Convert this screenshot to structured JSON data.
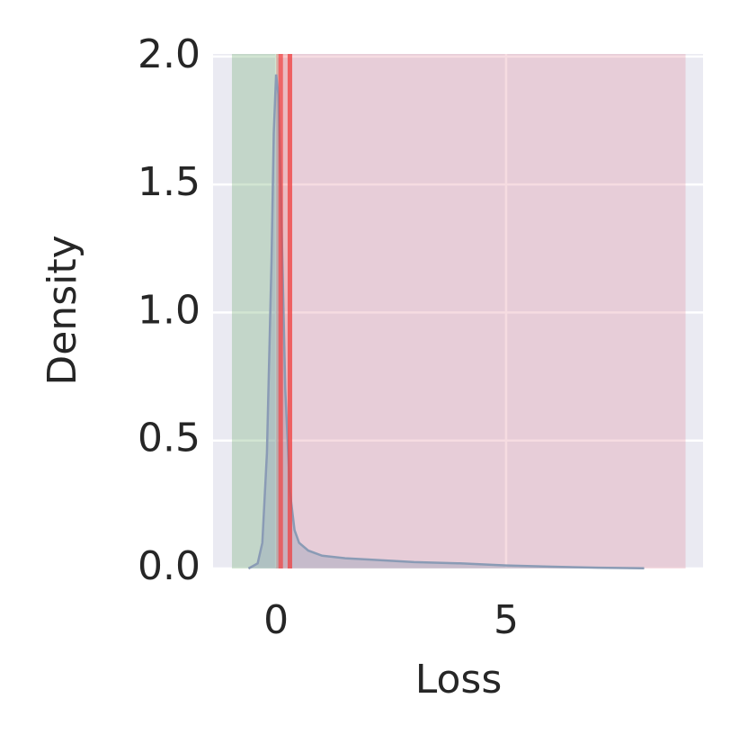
{
  "chart_data": {
    "type": "kde",
    "xlabel": "Loss",
    "ylabel": "Density",
    "xlim": [
      -1.37,
      9.28
    ],
    "ylim": [
      0,
      2.01
    ],
    "xticks": [
      0,
      5
    ],
    "yticks": [
      {
        "value": 0,
        "label": "0.0"
      },
      {
        "value": 0.5,
        "label": "0.5"
      },
      {
        "value": 1,
        "label": "1.0"
      },
      {
        "value": 1.5,
        "label": "1.5"
      },
      {
        "value": 2,
        "label": "2.0"
      }
    ],
    "grid": true,
    "spans": [
      {
        "start": -0.96,
        "end": 0.05,
        "color": "#6aa86a"
      },
      {
        "start": 0.25,
        "end": 8.9,
        "color": "#e08a9c"
      },
      {
        "start": 0.0,
        "end": 0.35,
        "color": "#f05050"
      }
    ],
    "vlines": [
      {
        "x": 0.1,
        "color": "#f04040"
      },
      {
        "x": 0.3,
        "color": "#f04040"
      }
    ],
    "series": [
      {
        "color": "#8a9bb5",
        "x": [
          -0.6,
          -0.4,
          -0.3,
          -0.2,
          -0.1,
          -0.05,
          0,
          0.05,
          0.1,
          0.2,
          0.3,
          0.4,
          0.5,
          0.7,
          1,
          1.5,
          2,
          3,
          4,
          5,
          6,
          7,
          8
        ],
        "values": [
          0,
          0.02,
          0.1,
          0.45,
          1.2,
          1.7,
          1.93,
          1.85,
          1.5,
          0.7,
          0.3,
          0.15,
          0.1,
          0.07,
          0.05,
          0.04,
          0.035,
          0.025,
          0.02,
          0.012,
          0.007,
          0.003,
          0.001
        ]
      }
    ]
  }
}
